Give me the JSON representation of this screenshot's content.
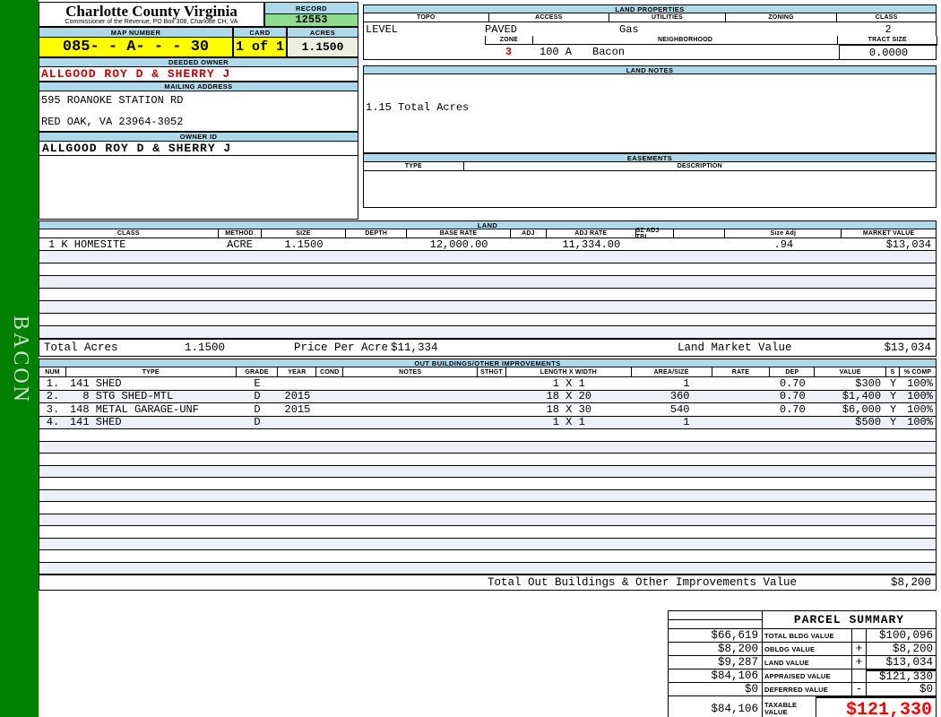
{
  "sidebar": {
    "tab_label": "BACON"
  },
  "header": {
    "county_title": "Charlotte County Virginia",
    "county_subtitle": "Commissioner of the Revenue, PO Box 308, Charlotte CH, VA",
    "record_label": "RECORD",
    "record_value": "12553",
    "map_number_label": "MAP NUMBER",
    "map_number_value": "085- - A- - - 30",
    "card_label": "CARD",
    "card_value": "1 of 1",
    "acres_label": "ACRES",
    "acres_value": "1.1500"
  },
  "owner": {
    "deeded_owner_label": "DEEDED OWNER",
    "deeded_owner": "ALLGOOD ROY D & SHERRY J",
    "mailing_address_label": "MAILING ADDRESS",
    "address_line1": "595 ROANOKE STATION RD",
    "address_line2": "RED OAK, VA 23964-3052",
    "owner_id_label": "OWNER ID",
    "owner_id": "ALLGOOD ROY D & SHERRY J"
  },
  "land_properties": {
    "title": "LAND PROPERTIES",
    "topo_label": "TOPO",
    "topo": "LEVEL",
    "access_label": "ACCESS",
    "access": "PAVED",
    "utilities_label": "UTILITIES",
    "utilities": "Gas",
    "zoning_label": "ZONING",
    "zoning": "",
    "class_label": "CLASS",
    "class_value": "2",
    "zone_label": "ZONE",
    "zone_value": "3",
    "zone_code": "100 A",
    "neighborhood_label": "NEIGHBORHOOD",
    "neighborhood": "Bacon",
    "tract_size_label": "TRACT SIZE",
    "tract_size": "0.0000"
  },
  "land_notes": {
    "title": "LAND NOTES",
    "note": "1.15 Total Acres"
  },
  "easements": {
    "title": "EASEMENTS",
    "type_label": "TYPE",
    "description_label": "DESCRIPTION"
  },
  "land_table": {
    "title": "LAND",
    "columns": [
      "CLASS",
      "METHOD",
      "SIZE",
      "DEPTH",
      "BASE RATE",
      "ADJ",
      "ADJ RATE",
      "SZ ADJ TBL",
      "",
      "Size Adj",
      "MARKET VALUE"
    ],
    "rows": [
      [
        "1 K HOMESITE",
        "ACRE",
        "1.1500",
        "",
        "12,000.00",
        "",
        "11,334.00",
        "",
        "",
        ".94",
        "$13,034"
      ]
    ],
    "empty_row_count": 7,
    "totals": {
      "total_acres_label": "Total Acres",
      "total_acres": "1.1500",
      "price_per_acre_label": "Price Per Acre",
      "price_per_acre": "$11,334",
      "land_market_value_label": "Land Market Value",
      "land_market_value": "$13,034"
    }
  },
  "out_buildings": {
    "title": "OUT BUILDINGS/OTHER IMPROVEMENTS",
    "columns": [
      "NUM",
      "TYPE",
      "GRADE",
      "YEAR",
      "COND",
      "NOTES",
      "STHGT",
      "LENGTH X WIDTH",
      "AREA/SIZE",
      "RATE",
      "DEP",
      "VALUE",
      "S",
      "% COMP"
    ],
    "rows": [
      [
        "1.",
        "141 SHED",
        "E",
        "",
        "",
        "",
        "",
        " 1 X 1 ",
        "1",
        "",
        "0.70",
        "$300",
        "Y",
        "100%"
      ],
      [
        "2.",
        "  8 STG SHED-MTL",
        "D",
        "2015",
        "",
        "",
        "",
        "18 X 20",
        "360",
        "",
        "0.70",
        "$1,400",
        "Y",
        "100%"
      ],
      [
        "3.",
        "148 METAL GARAGE-UNF",
        "D",
        "2015",
        "",
        "",
        "",
        "18 X 30",
        "540",
        "",
        "0.70",
        "$6,000",
        "Y",
        "100%"
      ],
      [
        "4.",
        "141 SHED",
        "D",
        "",
        "",
        "",
        "",
        " 1 X 1 ",
        "1",
        "",
        "",
        "$500",
        "Y",
        "100%"
      ]
    ],
    "empty_row_count": 12,
    "total_label": "Total Out Buildings & Other Improvements Value",
    "total_value": "$8,200"
  },
  "parcel_summary": {
    "title": "PARCEL SUMMARY",
    "rows": [
      {
        "left": "$66,619",
        "label": "TOTAL BLDG VALUE",
        "op": "",
        "value": "$100,096",
        "highlight": false
      },
      {
        "left": "$8,200",
        "label": "OBLDG VALUE",
        "op": "+",
        "value": "$8,200",
        "highlight": false
      },
      {
        "left": "$9,287",
        "label": "LAND VALUE",
        "op": "+",
        "value": "$13,034",
        "highlight": false
      },
      {
        "left": "$84,106",
        "label": "APPRAISED VALUE",
        "op": "",
        "value": "$121,330",
        "highlight": false
      },
      {
        "left": "$0",
        "label": "DEFERRED VALUE",
        "op": "-",
        "value": "$0",
        "highlight": false
      },
      {
        "left": "$84,106",
        "label": "TAXABLE VALUE",
        "op": "",
        "value": "$121,330",
        "highlight": true
      }
    ]
  },
  "colors": {
    "sidebar_green": "#008000",
    "header_blue": "#aed9ea",
    "record_green": "#8fdd8f",
    "highlight_yellow": "#ffff00",
    "acres_cream": "#efefdf",
    "owner_red": "#cc0000",
    "taxable_red": "#ff0000",
    "alt_row": "#edf1f7"
  }
}
